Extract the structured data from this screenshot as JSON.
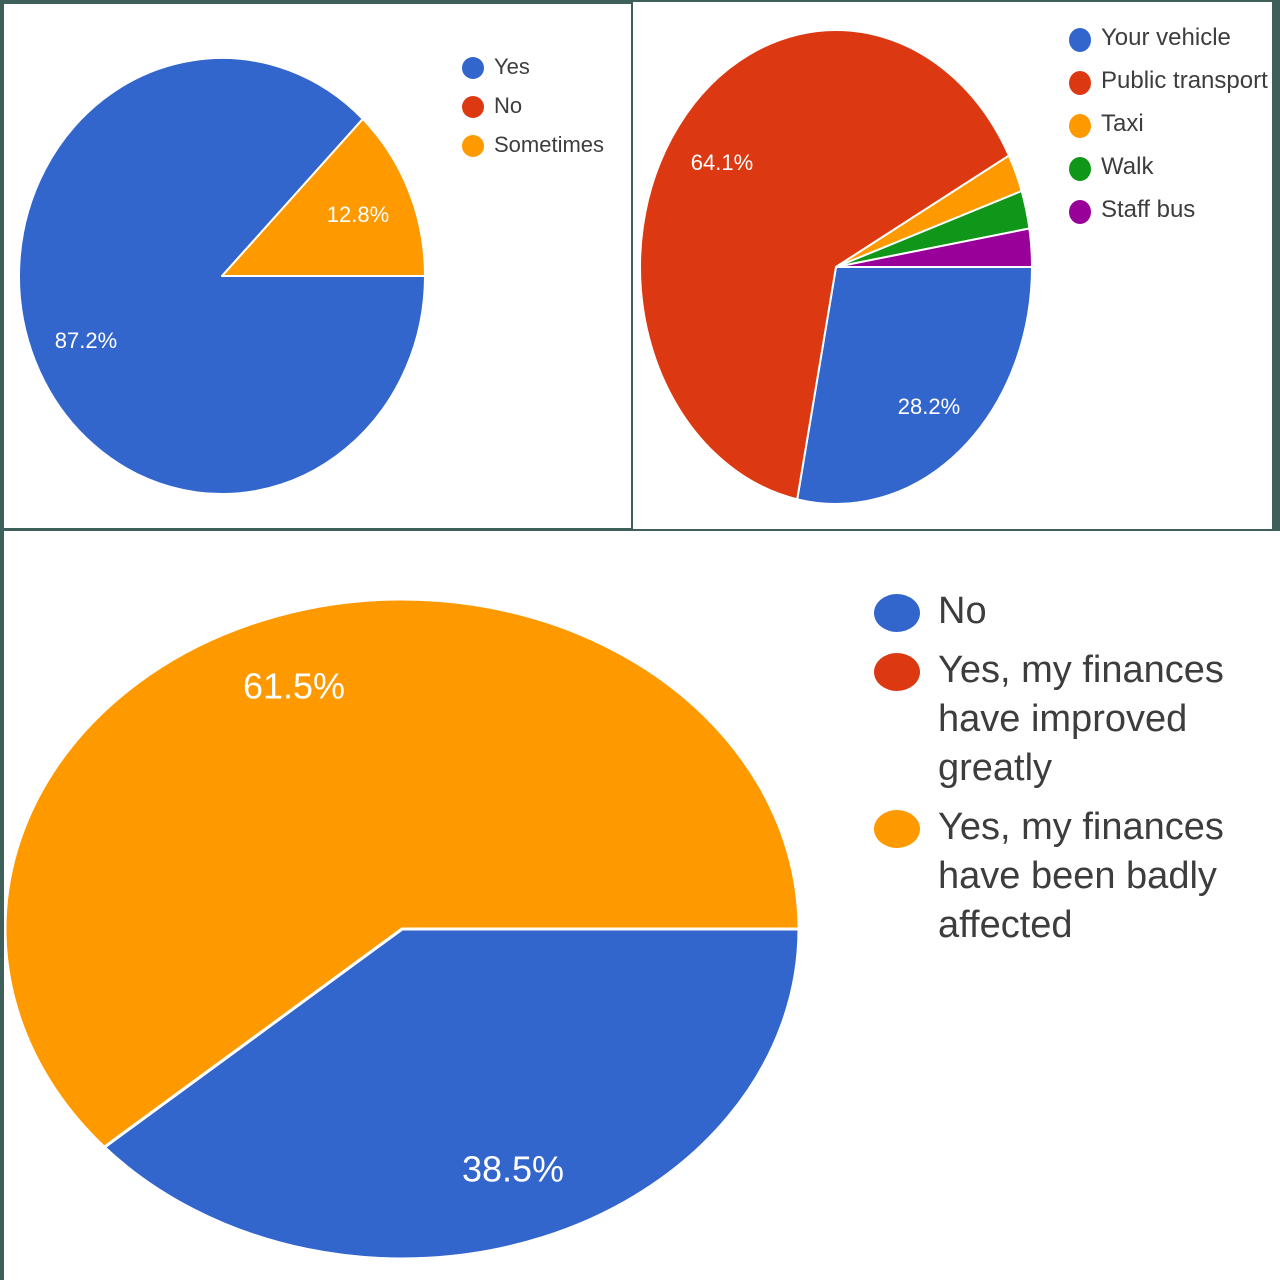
{
  "chart_data": [
    {
      "type": "pie",
      "title": "",
      "categories": [
        "Yes",
        "No",
        "Sometimes"
      ],
      "values": [
        87.2,
        0,
        12.8
      ],
      "colors": [
        "#3366cc",
        "#dc3912",
        "#ff9900"
      ],
      "data_labels": [
        "87.2%",
        "",
        "12.8%"
      ],
      "legend": "right"
    },
    {
      "type": "pie",
      "title": "",
      "categories": [
        "Your vehicle",
        "Public transport",
        "Taxi",
        "Walk",
        "Staff bus"
      ],
      "values": [
        28.2,
        64.1,
        2.6,
        2.6,
        2.6
      ],
      "colors": [
        "#3366cc",
        "#dc3912",
        "#ff9900",
        "#109618",
        "#990099"
      ],
      "data_labels": [
        "28.2%",
        "64.1%",
        "",
        "",
        ""
      ],
      "legend": "right"
    },
    {
      "type": "pie",
      "title": "",
      "categories": [
        "No",
        "Yes, my finances have improved greatly",
        "Yes, my finances have been badly affected"
      ],
      "values": [
        38.5,
        0,
        61.5
      ],
      "colors": [
        "#3366cc",
        "#dc3912",
        "#ff9900"
      ],
      "data_labels": [
        "38.5%",
        "",
        "61.5%"
      ],
      "legend": "right"
    }
  ]
}
